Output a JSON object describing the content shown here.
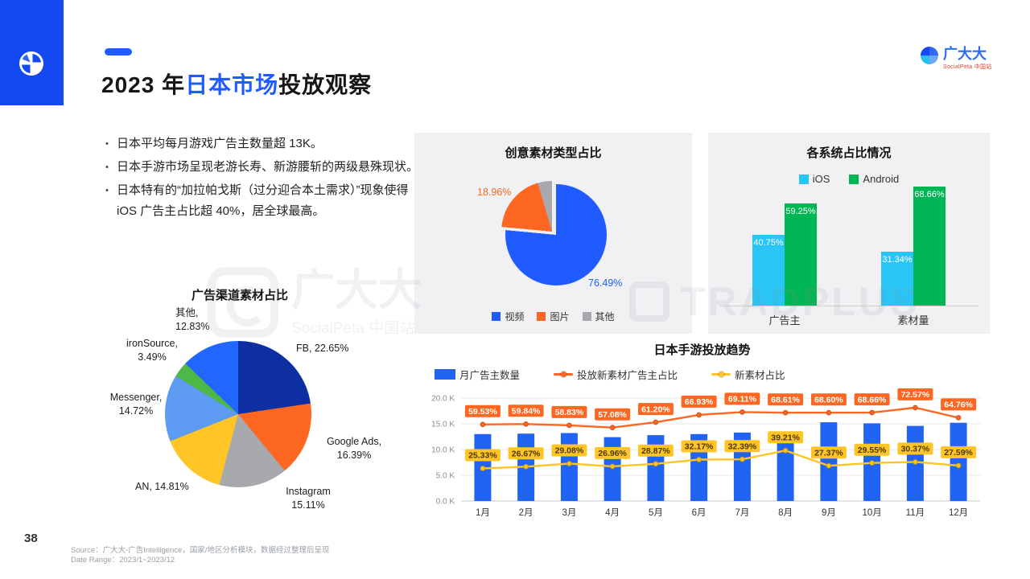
{
  "page": {
    "number": "38",
    "source_line1": "Source：广大大-广告Intelligence，国家/地区分析模块，数据经过整理后呈现",
    "source_line2": "Date Range：2023/1~2023/12"
  },
  "header": {
    "title_prefix": "2023 年",
    "title_highlight": "日本市场",
    "title_suffix": "投放观察",
    "accent_color": "#1f5bff"
  },
  "logo": {
    "name": "广大大",
    "subtitle": "SocialPeta 中国站"
  },
  "watermark": {
    "left_name": "广大大",
    "left_sub": "SocialPeta 中国站",
    "right": "TRADPLUS"
  },
  "bullets": [
    "日本平均每月游戏广告主数量超 13K。",
    "日本手游市场呈现老游长寿、新游腰斩的两级悬殊现状。",
    "日本特有的“加拉帕戈斯（过分迎合本土需求）”现象使得 iOS 广告主占比超 40%，居全球最高。"
  ],
  "chart_data": [
    {
      "id": "creative-type-pie",
      "type": "pie",
      "title": "创意素材类型占比",
      "slices": [
        {
          "label": "视频",
          "value": 76.49,
          "color": "#1f5bff"
        },
        {
          "label": "图片",
          "value": 18.96,
          "color": "#fd6721"
        },
        {
          "label": "其他",
          "value": 4.55,
          "color": "#a7a9ac"
        }
      ],
      "callouts": [
        {
          "text": "76.49%",
          "color": "#1f5bff"
        },
        {
          "text": "18.96%",
          "color": "#fd6721"
        }
      ],
      "legend_position": "bottom"
    },
    {
      "id": "os-share-bars",
      "type": "bar",
      "title": "各系统占比情况",
      "categories": [
        "广告主",
        "素材量"
      ],
      "series": [
        {
          "name": "iOS",
          "color": "#29c5f6",
          "values": [
            40.75,
            31.34
          ]
        },
        {
          "name": "Android",
          "color": "#00b553",
          "values": [
            59.25,
            68.66
          ]
        }
      ],
      "value_suffix": "%",
      "legend_position": "top"
    },
    {
      "id": "channel-pie",
      "type": "pie",
      "title": "广告渠道素材占比",
      "slices": [
        {
          "label": "FB",
          "value": 22.65,
          "color": "#0e2fa2",
          "display": "FB, 22.65%"
        },
        {
          "label": "Google Ads",
          "value": 16.39,
          "color": "#fd6721",
          "display": "Google Ads, 16.39%"
        },
        {
          "label": "Instagram",
          "value": 15.11,
          "color": "#a7a9ac",
          "display": "Instagram 15.11%"
        },
        {
          "label": "AN",
          "value": 14.81,
          "color": "#ffc527",
          "display": "AN, 14.81%"
        },
        {
          "label": "Messenger",
          "value": 14.72,
          "color": "#5e9cf3",
          "display": "Messenger, 14.72%"
        },
        {
          "label": "ironSource",
          "value": 3.49,
          "color": "#4db748",
          "display": "ironSource, 3.49%"
        },
        {
          "label": "其他",
          "value": 12.83,
          "color": "#2166ff",
          "display": "其他, 12.83%"
        }
      ]
    },
    {
      "id": "trend-combo",
      "type": "line",
      "title": "日本手游投放趋势",
      "categories": [
        "1月",
        "2月",
        "3月",
        "4月",
        "5月",
        "6月",
        "7月",
        "8月",
        "9月",
        "10月",
        "11月",
        "12月"
      ],
      "y_axis": {
        "ticks": [
          "20.0 K",
          "15.0 K",
          "10.0 K",
          "5.0 K",
          "0.0 K"
        ],
        "max_k": 20,
        "percent_axis_max": 80
      },
      "series": [
        {
          "name": "月广告主数量",
          "type": "bar",
          "color": "#2064f1",
          "unit": "K",
          "values": [
            13.0,
            13.1,
            13.2,
            12.4,
            12.8,
            13.0,
            13.3,
            13.5,
            15.3,
            15.1,
            14.6,
            15.2
          ]
        },
        {
          "name": "投放新素材广告主占比",
          "type": "line",
          "color": "#fd6721",
          "values": [
            59.53,
            59.84,
            58.83,
            57.08,
            61.2,
            66.93,
            69.11,
            68.61,
            68.6,
            68.66,
            72.57,
            64.76
          ]
        },
        {
          "name": "新素材占比",
          "type": "line",
          "color": "#ffc527",
          "values": [
            25.33,
            26.67,
            29.08,
            26.96,
            28.87,
            32.17,
            32.39,
            39.21,
            27.37,
            29.55,
            30.37,
            27.59
          ]
        }
      ],
      "grid": true
    }
  ]
}
